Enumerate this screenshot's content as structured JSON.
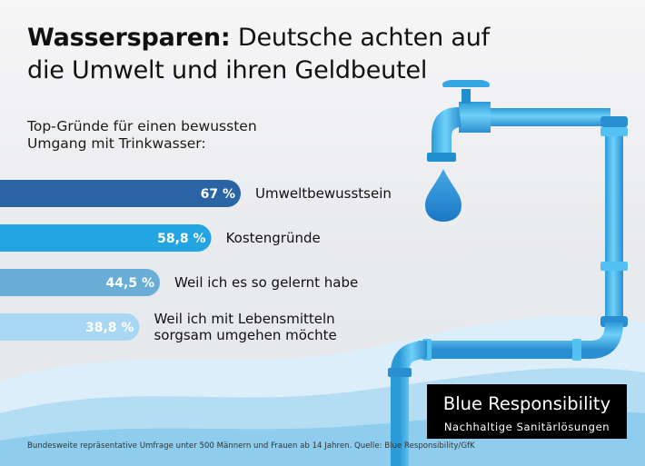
{
  "title": {
    "bold": "Wassersparen:",
    "rest": " Deutsche achten auf die Umwelt und ihren Geldbeutel"
  },
  "subtitle": "Top-Gründe für einen bewussten Umgang mit Trinkwasser:",
  "chart_data": {
    "type": "bar",
    "orientation": "horizontal",
    "unit": "%",
    "categories": [
      "Umweltbewusstsein",
      "Kostengründe",
      "Weil ich es so gelernt habe",
      "Weil ich mit Lebensmitteln sorgsam umgehen möchte"
    ],
    "values": [
      67,
      58.8,
      44.5,
      38.8
    ],
    "value_labels": [
      "67 %",
      "58,8 %",
      "44,5 %",
      "38,8 %"
    ],
    "colors": [
      "#2a64a4",
      "#22a5e2",
      "#6aaed8",
      "#a8d7f3"
    ]
  },
  "category_lines": [
    [
      "Umweltbewusstsein"
    ],
    [
      "Kostengründe"
    ],
    [
      "Weil ich es so gelernt habe"
    ],
    [
      "Weil ich mit Lebensmitteln",
      "sorgsam umgehen möchte"
    ]
  ],
  "brand": {
    "name": "Blue Responsibility",
    "tagline": "Nachhaltige Sanitärlösungen"
  },
  "source": "Bundesweite repräsentative Umfrage unter 500 Männern und Frauen ab 14 Jahren. Quelle: Blue Responsibility/GfK",
  "colors": {
    "pipe": "#3fb2e8",
    "pipe_dark": "#1f8fd0",
    "water_drop": "#2c8fd6",
    "wave_light": "#cfe9f7",
    "wave_mid": "#8fcdef"
  }
}
